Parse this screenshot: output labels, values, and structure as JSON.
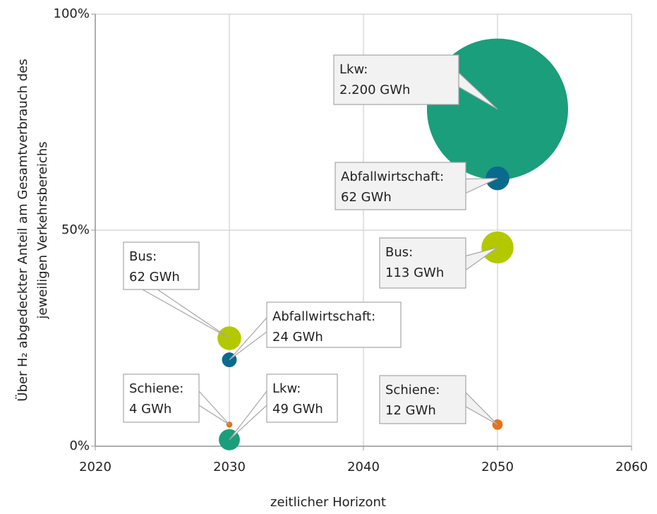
{
  "chart_data": {
    "type": "bubble",
    "xlabel": "zeitlicher Horizont",
    "ylabel": [
      "Über H₂ abgedeckter Anteil am Gesamtverbrauch des",
      "jeweiligen Verkehrsbereichs"
    ],
    "xlim": [
      2020,
      2060
    ],
    "xticks": [
      2020,
      2030,
      2040,
      2050,
      2060
    ],
    "ylim": [
      0,
      100
    ],
    "yticks": [
      {
        "value": 0,
        "label": "0%"
      },
      {
        "value": 50,
        "label": "50%"
      },
      {
        "value": 100,
        "label": "100%"
      }
    ],
    "grid": true,
    "series": [
      {
        "name": "Lkw:",
        "color": "#1b9e7b",
        "x": [
          2030,
          2050
        ],
        "values": [
          1.5,
          78
        ],
        "sizes": [
          49,
          2200
        ],
        "size_labels": [
          "49 GWh",
          "2.200 GWh"
        ]
      },
      {
        "name": "Bus:",
        "color": "#b4c800",
        "x": [
          2030,
          2050
        ],
        "values": [
          25,
          46
        ],
        "sizes": [
          62,
          113
        ],
        "size_labels": [
          "62 GWh",
          "113 GWh"
        ]
      },
      {
        "name": "Abfallwirtschaft:",
        "color": "#0a6a8e",
        "x": [
          2030,
          2050
        ],
        "values": [
          20,
          62
        ],
        "sizes": [
          24,
          62
        ],
        "size_labels": [
          "24 GWh",
          "62 GWh"
        ]
      },
      {
        "name": "Schiene:",
        "color": "#e8711a",
        "x": [
          2030,
          2050
        ],
        "values": [
          5,
          5
        ],
        "sizes": [
          4,
          12
        ],
        "size_labels": [
          "4 GWh",
          "12 GWh"
        ]
      }
    ]
  }
}
